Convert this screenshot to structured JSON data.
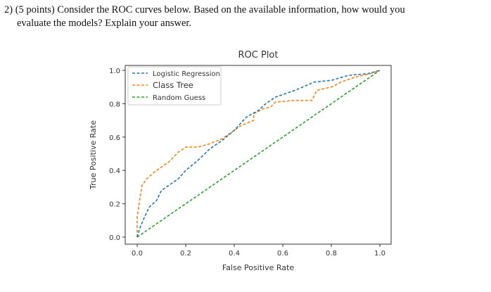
{
  "question": {
    "number": "2)",
    "text_line1": "(5 points) Consider the ROC curves below. Based on the available information, how would you",
    "text_line2": "evaluate the models? Explain your answer."
  },
  "chart_data": {
    "type": "line",
    "title": "ROC Plot",
    "xlabel": "False Positive Rate",
    "ylabel": "True Positive Rate",
    "xlim": [
      0,
      1
    ],
    "ylim": [
      0,
      1
    ],
    "xticks": [
      "0.0",
      "0.2",
      "0.4",
      "0.6",
      "0.8",
      "1.0"
    ],
    "yticks": [
      "0.0",
      "0.2",
      "0.4",
      "0.6",
      "0.8",
      "1.0"
    ],
    "grid": false,
    "legend_position": "top-left",
    "series": [
      {
        "name": "Logistic Regression",
        "color": "#1f77b4",
        "style": "dashed",
        "x": [
          0,
          0.01,
          0.03,
          0.05,
          0.08,
          0.1,
          0.13,
          0.17,
          0.2,
          0.25,
          0.3,
          0.35,
          0.4,
          0.45,
          0.5,
          0.53,
          0.57,
          0.65,
          0.73,
          0.8,
          0.87,
          0.95,
          1
        ],
        "y": [
          0,
          0.05,
          0.12,
          0.18,
          0.22,
          0.28,
          0.31,
          0.35,
          0.4,
          0.46,
          0.53,
          0.58,
          0.64,
          0.72,
          0.76,
          0.8,
          0.84,
          0.88,
          0.93,
          0.94,
          0.97,
          0.98,
          1
        ]
      },
      {
        "name": "Class Tree",
        "color": "#ff7f0e",
        "style": "dashed",
        "x": [
          0,
          0,
          0.01,
          0.02,
          0.04,
          0.07,
          0.1,
          0.13,
          0.17,
          0.2,
          0.25,
          0.3,
          0.35,
          0.4,
          0.43,
          0.48,
          0.48,
          0.52,
          0.55,
          0.57,
          0.65,
          0.72,
          0.74,
          0.8,
          0.84,
          0.9,
          0.96,
          1
        ],
        "y": [
          0,
          0.12,
          0.22,
          0.31,
          0.35,
          0.39,
          0.42,
          0.45,
          0.51,
          0.54,
          0.54,
          0.56,
          0.59,
          0.64,
          0.67,
          0.7,
          0.74,
          0.77,
          0.78,
          0.81,
          0.82,
          0.82,
          0.88,
          0.9,
          0.93,
          0.96,
          0.98,
          1
        ]
      },
      {
        "name": "Random Guess",
        "color": "#2ca02c",
        "style": "dashed",
        "x": [
          0,
          1
        ],
        "y": [
          0,
          1
        ]
      }
    ]
  }
}
